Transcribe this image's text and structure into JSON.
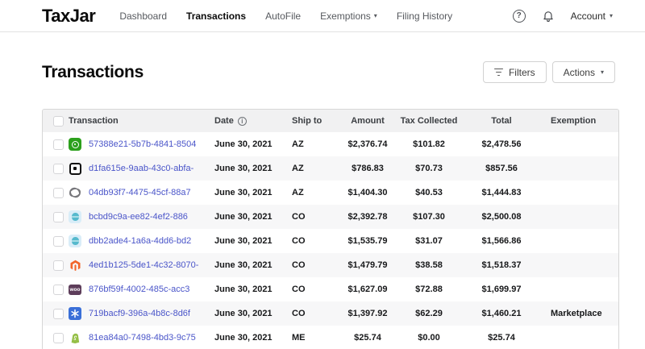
{
  "nav": {
    "logo": "TaxJar",
    "items": [
      {
        "label": "Dashboard",
        "active": false,
        "caret": false
      },
      {
        "label": "Transactions",
        "active": true,
        "caret": false
      },
      {
        "label": "AutoFile",
        "active": false,
        "caret": false
      },
      {
        "label": "Exemptions",
        "active": false,
        "caret": true
      },
      {
        "label": "Filing History",
        "active": false,
        "caret": false
      }
    ],
    "account_label": "Account",
    "icons": [
      "help-icon",
      "bell-icon"
    ]
  },
  "page": {
    "title": "Transactions",
    "filters_label": "Filters",
    "actions_label": "Actions"
  },
  "colors": {
    "link": "#4a55c9",
    "quickbooks_green": "#2ca01c",
    "magento_orange": "#f2652a",
    "woocommerce_purple": "#5d3d5a",
    "walmart_blue": "#3a6fd8",
    "shopify_green": "#95bf47",
    "teal_app_bg": "#d9edf8",
    "teal_app": "#55b9cd",
    "header_bg": "#f1f1f2",
    "alt_row_bg": "#f7f7f8"
  },
  "table": {
    "headers": [
      "Transaction",
      "Date",
      "Ship to",
      "Amount",
      "Tax Collected",
      "Total",
      "Exemption"
    ],
    "date_info_icon": "i",
    "rows": [
      {
        "platform": "quickbooks",
        "id": "57388e21-5b7b-4841-8504",
        "date": "June 30, 2021",
        "ship_to": "AZ",
        "amount": "$2,376.74",
        "tax_collected": "$101.82",
        "total": "$2,478.56",
        "exemption": ""
      },
      {
        "platform": "square",
        "id": "d1fa615e-9aab-43c0-abfa-",
        "date": "June 30, 2021",
        "ship_to": "AZ",
        "amount": "$786.83",
        "tax_collected": "$70.73",
        "total": "$857.56",
        "exemption": ""
      },
      {
        "platform": "squarespace",
        "id": "04db93f7-4475-45cf-88a7",
        "date": "June 30, 2021",
        "ship_to": "AZ",
        "amount": "$1,404.30",
        "tax_collected": "$40.53",
        "total": "$1,444.83",
        "exemption": ""
      },
      {
        "platform": "commerce-app",
        "id": "bcbd9c9a-ee82-4ef2-886",
        "date": "June 30, 2021",
        "ship_to": "CO",
        "amount": "$2,392.78",
        "tax_collected": "$107.30",
        "total": "$2,500.08",
        "exemption": ""
      },
      {
        "platform": "commerce-app",
        "id": "dbb2ade4-1a6a-4dd6-bd2",
        "date": "June 30, 2021",
        "ship_to": "CO",
        "amount": "$1,535.79",
        "tax_collected": "$31.07",
        "total": "$1,566.86",
        "exemption": ""
      },
      {
        "platform": "magento",
        "id": "4ed1b125-5de1-4c32-8070-",
        "date": "June 30, 2021",
        "ship_to": "CO",
        "amount": "$1,479.79",
        "tax_collected": "$38.58",
        "total": "$1,518.37",
        "exemption": ""
      },
      {
        "platform": "woocommerce",
        "id": "876bf59f-4002-485c-acc3",
        "date": "June 30, 2021",
        "ship_to": "CO",
        "amount": "$1,627.09",
        "tax_collected": "$72.88",
        "total": "$1,699.97",
        "exemption": ""
      },
      {
        "platform": "walmart",
        "id": "719bacf9-396a-4b8c-8d6f",
        "date": "June 30, 2021",
        "ship_to": "CO",
        "amount": "$1,397.92",
        "tax_collected": "$62.29",
        "total": "$1,460.21",
        "exemption": "Marketplace"
      },
      {
        "platform": "shopify",
        "id": "81ea84a0-7498-4bd3-9c75",
        "date": "June 30, 2021",
        "ship_to": "ME",
        "amount": "$25.74",
        "tax_collected": "$0.00",
        "total": "$25.74",
        "exemption": ""
      }
    ]
  }
}
